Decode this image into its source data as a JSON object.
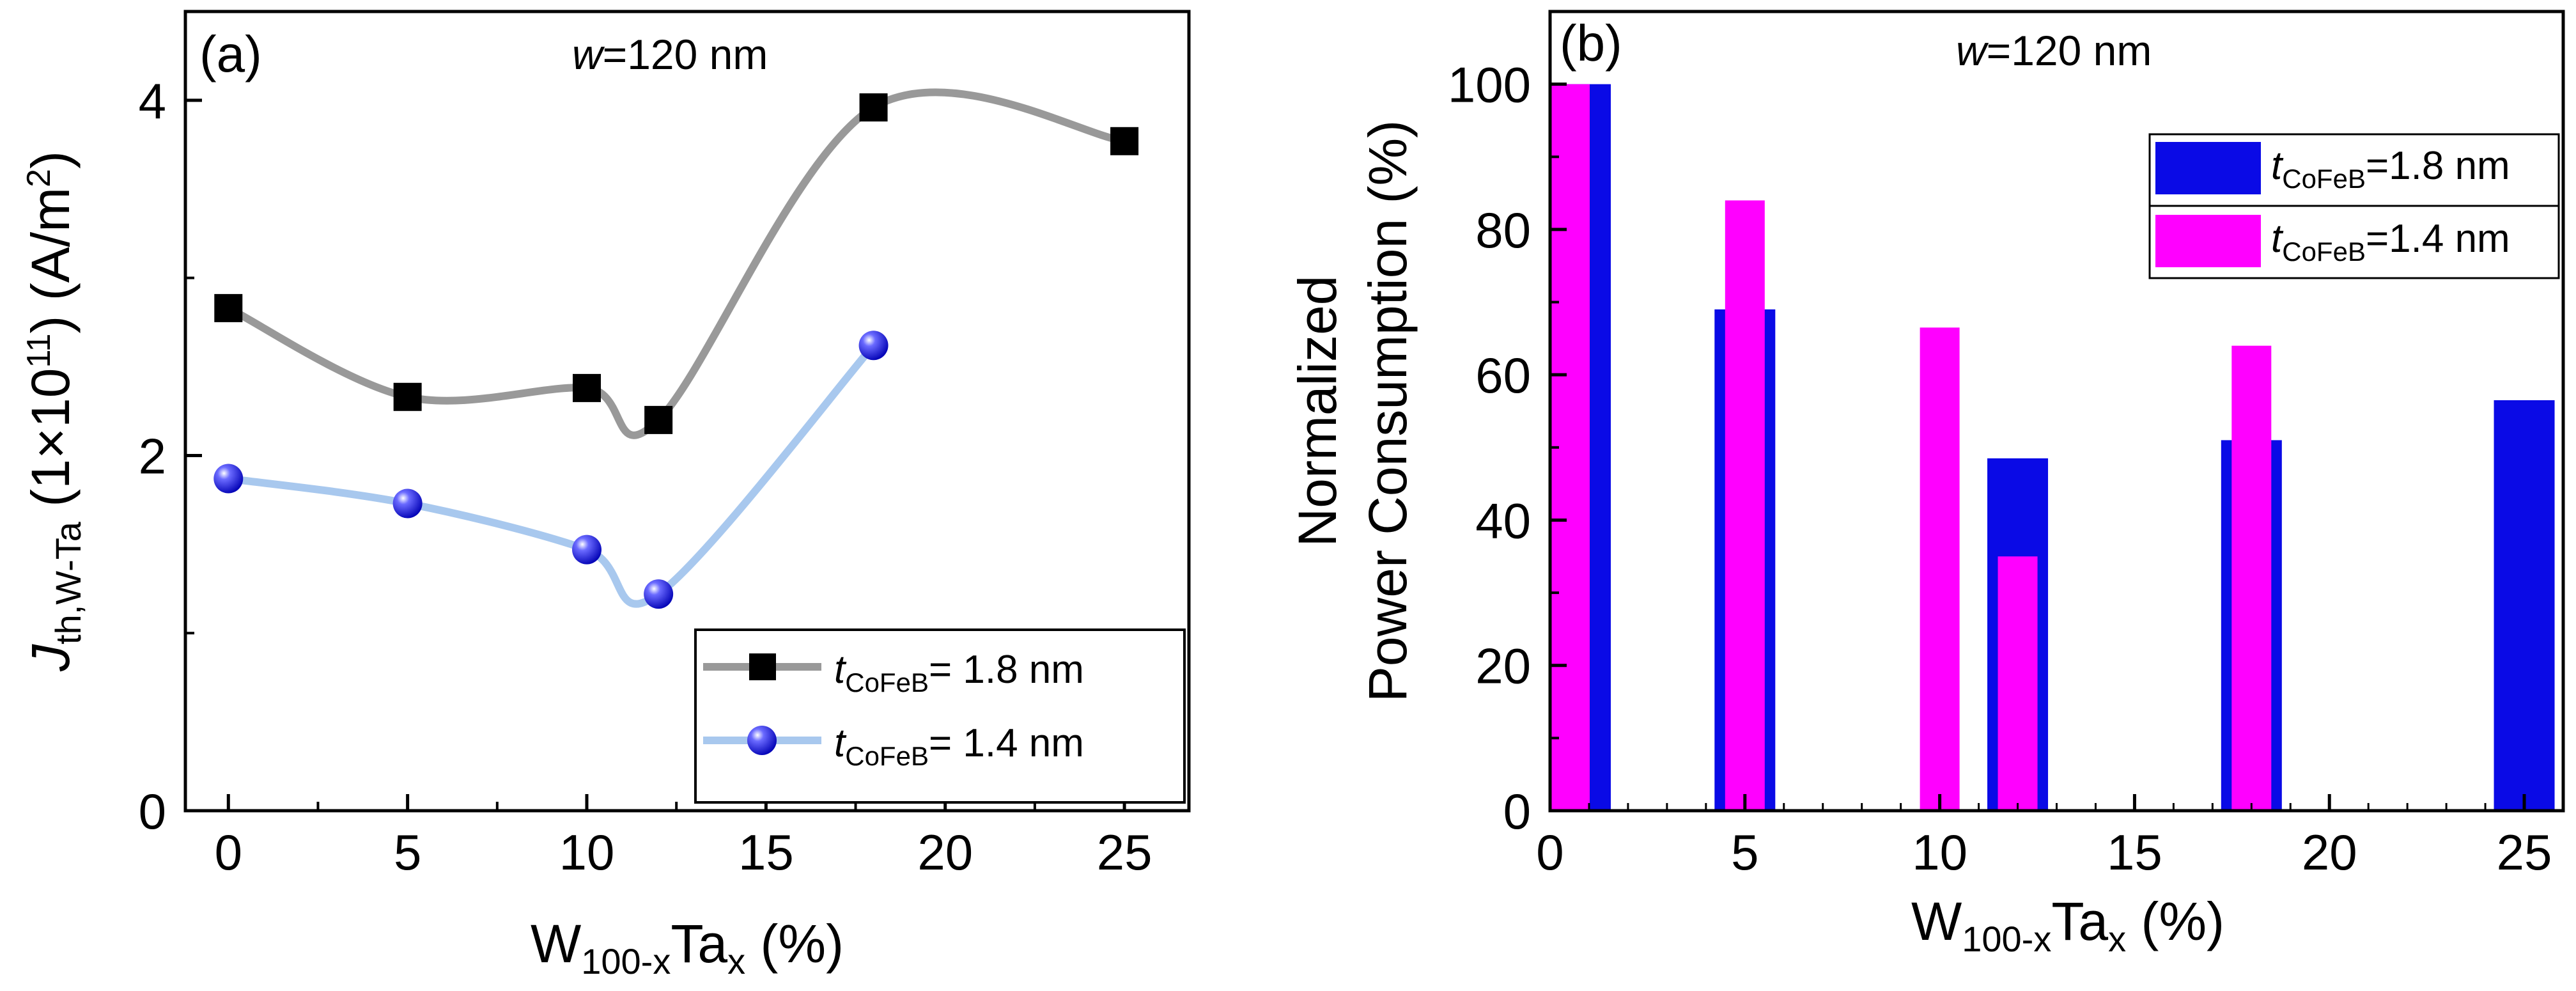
{
  "chart_data": [
    {
      "panel": "a",
      "type": "line",
      "panel_label": "(a)",
      "annotation": {
        "italic": "w",
        "rest": "=120 nm"
      },
      "x": [
        0,
        5,
        10,
        12,
        18,
        25
      ],
      "series": [
        {
          "name": "t_CoFeB= 1.8 nm",
          "legend": {
            "italic": "t",
            "sub": "CoFeB",
            "rest": "= 1.8 nm"
          },
          "marker": "square",
          "line_color": "#999999",
          "marker_color": "#000000",
          "x": [
            0,
            5,
            10,
            12,
            18,
            25
          ],
          "values": [
            2.83,
            2.33,
            2.38,
            2.2,
            3.96,
            3.77
          ]
        },
        {
          "name": "t_CoFeB= 1.4 nm",
          "legend": {
            "italic": "t",
            "sub": "CoFeB",
            "rest": "= 1.4 nm"
          },
          "marker": "sphere",
          "line_color": "#a8c8ee",
          "marker_color": "#1a1aee",
          "x": [
            0,
            5,
            10,
            12,
            18
          ],
          "values": [
            1.87,
            1.73,
            1.47,
            1.22,
            2.62
          ]
        }
      ],
      "xlabel": {
        "main": "W",
        "sub1": "100-x",
        "mid": "Ta",
        "sub2": "x",
        "end": " (%)"
      },
      "ylabel": {
        "italic": "J",
        "sub": "th,W-Ta",
        "mid": " (1×10",
        "sup": "11",
        "mid2": ") (A/m",
        "sup2": "2",
        "end": ")"
      },
      "xlim": [
        -1.2,
        26.8
      ],
      "ylim": [
        0,
        4.5
      ],
      "xticks": [
        "0",
        "5",
        "10",
        "15",
        "20",
        "25"
      ],
      "yticks": [
        "0",
        "2",
        "4"
      ],
      "legend_position": "bottom-right"
    },
    {
      "panel": "b",
      "type": "bar",
      "panel_label": "(b)",
      "annotation": {
        "italic": "w",
        "rest": "=120 nm"
      },
      "series": [
        {
          "name": "t_CoFeB=1.8 nm",
          "legend": {
            "italic": "t",
            "sub": "CoFeB",
            "rest": "=1.8 nm"
          },
          "color": "#0a0ae6",
          "x": [
            0,
            5,
            12,
            18,
            25
          ],
          "values": [
            100,
            69,
            48.5,
            51,
            56.5
          ]
        },
        {
          "name": "t_CoFeB=1.4 nm",
          "legend": {
            "italic": "t",
            "sub": "CoFeB",
            "rest": "=1.4 nm"
          },
          "color": "#ff00ff",
          "x": [
            0,
            5,
            10,
            12,
            18
          ],
          "values": [
            100,
            84,
            66.5,
            35,
            64
          ]
        }
      ],
      "xlabel": {
        "main": "W",
        "sub1": "100-x",
        "mid": "Ta",
        "sub2": "x",
        "end": " (%)"
      },
      "ylabel_line1": "Normalized",
      "ylabel_line2": "Power Consumption (%)",
      "xlim": [
        0,
        26
      ],
      "ylim": [
        0,
        110
      ],
      "xticks": [
        "0",
        "5",
        "10",
        "15",
        "20",
        "25"
      ],
      "yticks": [
        "0",
        "20",
        "40",
        "60",
        "80",
        "100"
      ],
      "legend_position": "top-right"
    }
  ]
}
